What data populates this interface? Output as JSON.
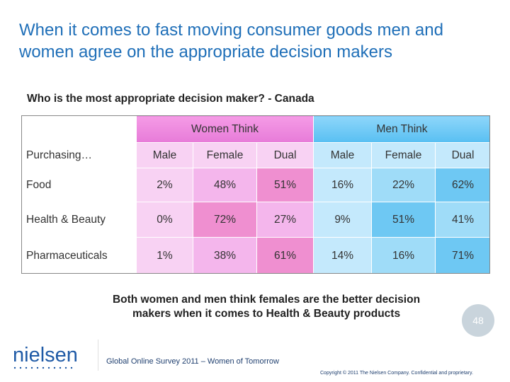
{
  "title": "When it comes to fast moving consumer goods men and women agree on the appropriate decision makers",
  "subtitle": "Who is the most appropriate decision maker? - Canada",
  "chart_data": {
    "type": "table",
    "groups": [
      "Women Think",
      "Men Think"
    ],
    "row_header": "Purchasing…",
    "columns": [
      "Male",
      "Female",
      "Dual",
      "Male",
      "Female",
      "Dual"
    ],
    "rows": [
      {
        "label": "Food",
        "values": [
          "2%",
          "48%",
          "51%",
          "16%",
          "22%",
          "62%"
        ]
      },
      {
        "label": "Health & Beauty",
        "values": [
          "0%",
          "72%",
          "27%",
          "9%",
          "51%",
          "41%"
        ]
      },
      {
        "label": "Pharmaceuticals",
        "values": [
          "1%",
          "38%",
          "61%",
          "14%",
          "16%",
          "71%"
        ]
      }
    ]
  },
  "note_line1": "Both women and men think females are the better decision",
  "note_line2": "makers when it comes to Health & Beauty products",
  "page_number": "48",
  "footer_source": "Global Online Survey 2011 – Women of Tomorrow",
  "copyright": "Copyright © 2011 The Nielsen Company. Confidential and proprietary.",
  "brand": "nielsen",
  "colors": {
    "title": "#1f6fb8",
    "women_header": "#e77bd8",
    "men_header": "#58bff2"
  }
}
